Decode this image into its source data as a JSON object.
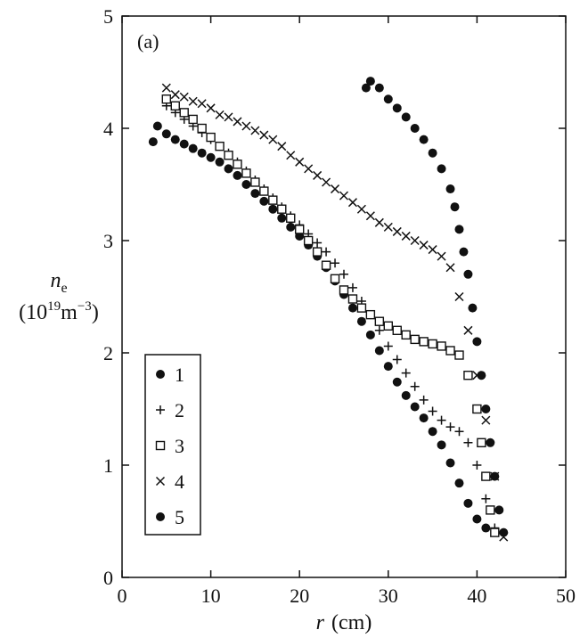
{
  "chart_data": {
    "type": "scatter",
    "panel_label": "(a)",
    "xlabel_var": "r",
    "xlabel_unit": "(cm)",
    "ylabel_var": "n",
    "ylabel_sub": "e",
    "ylabel_unit_base": "(10",
    "ylabel_unit_exp1": "19",
    "ylabel_unit_mid": "m",
    "ylabel_unit_exp2": "−3",
    "ylabel_unit_end": ")",
    "xlim": [
      0,
      50
    ],
    "ylim": [
      0,
      5
    ],
    "x_ticks": [
      0,
      10,
      20,
      30,
      40,
      50
    ],
    "y_ticks": [
      0,
      1,
      2,
      3,
      4,
      5
    ],
    "grid": false,
    "legend_position": "lower-left",
    "series": [
      {
        "name": "1",
        "marker": "filled-circle",
        "points": [
          [
            3.5,
            3.88
          ],
          [
            4,
            4.02
          ],
          [
            5,
            3.95
          ],
          [
            6,
            3.9
          ],
          [
            7,
            3.86
          ],
          [
            8,
            3.82
          ],
          [
            9,
            3.78
          ],
          [
            10,
            3.74
          ],
          [
            11,
            3.7
          ],
          [
            12,
            3.64
          ],
          [
            13,
            3.58
          ],
          [
            14,
            3.5
          ],
          [
            15,
            3.42
          ],
          [
            16,
            3.35
          ],
          [
            17,
            3.28
          ],
          [
            18,
            3.2
          ],
          [
            19,
            3.12
          ],
          [
            20,
            3.04
          ],
          [
            21,
            2.96
          ],
          [
            22,
            2.86
          ],
          [
            23,
            2.76
          ],
          [
            24,
            2.64
          ],
          [
            25,
            2.52
          ],
          [
            26,
            2.4
          ],
          [
            27,
            2.28
          ],
          [
            28,
            2.16
          ],
          [
            29,
            2.02
          ],
          [
            30,
            1.88
          ],
          [
            31,
            1.74
          ],
          [
            32,
            1.62
          ],
          [
            33,
            1.52
          ],
          [
            34,
            1.42
          ],
          [
            35,
            1.3
          ],
          [
            36,
            1.18
          ],
          [
            37,
            1.02
          ],
          [
            38,
            0.84
          ],
          [
            39,
            0.66
          ],
          [
            40,
            0.52
          ],
          [
            41,
            0.44
          ]
        ]
      },
      {
        "name": "2",
        "marker": "plus",
        "points": [
          [
            5,
            4.2
          ],
          [
            6,
            4.14
          ],
          [
            7,
            4.08
          ],
          [
            8,
            4.02
          ],
          [
            9,
            3.96
          ],
          [
            10,
            3.9
          ],
          [
            11,
            3.84
          ],
          [
            12,
            3.78
          ],
          [
            13,
            3.7
          ],
          [
            14,
            3.62
          ],
          [
            15,
            3.54
          ],
          [
            16,
            3.46
          ],
          [
            17,
            3.38
          ],
          [
            18,
            3.3
          ],
          [
            19,
            3.22
          ],
          [
            20,
            3.14
          ],
          [
            21,
            3.06
          ],
          [
            22,
            2.98
          ],
          [
            23,
            2.9
          ],
          [
            24,
            2.8
          ],
          [
            25,
            2.7
          ],
          [
            26,
            2.58
          ],
          [
            27,
            2.46
          ],
          [
            28,
            2.34
          ],
          [
            29,
            2.2
          ],
          [
            30,
            2.06
          ],
          [
            31,
            1.94
          ],
          [
            32,
            1.82
          ],
          [
            33,
            1.7
          ],
          [
            34,
            1.58
          ],
          [
            35,
            1.48
          ],
          [
            36,
            1.4
          ],
          [
            37,
            1.34
          ],
          [
            38,
            1.3
          ],
          [
            39,
            1.2
          ],
          [
            40,
            1.0
          ],
          [
            41,
            0.7
          ],
          [
            42,
            0.44
          ]
        ]
      },
      {
        "name": "3",
        "marker": "open-square",
        "points": [
          [
            5,
            4.26
          ],
          [
            6,
            4.2
          ],
          [
            7,
            4.14
          ],
          [
            8,
            4.08
          ],
          [
            9,
            4.0
          ],
          [
            10,
            3.92
          ],
          [
            11,
            3.84
          ],
          [
            12,
            3.76
          ],
          [
            13,
            3.68
          ],
          [
            14,
            3.6
          ],
          [
            15,
            3.52
          ],
          [
            16,
            3.44
          ],
          [
            17,
            3.36
          ],
          [
            18,
            3.28
          ],
          [
            19,
            3.2
          ],
          [
            20,
            3.1
          ],
          [
            21,
            3.0
          ],
          [
            22,
            2.9
          ],
          [
            23,
            2.78
          ],
          [
            24,
            2.66
          ],
          [
            25,
            2.56
          ],
          [
            26,
            2.48
          ],
          [
            27,
            2.4
          ],
          [
            28,
            2.34
          ],
          [
            29,
            2.28
          ],
          [
            30,
            2.24
          ],
          [
            31,
            2.2
          ],
          [
            32,
            2.16
          ],
          [
            33,
            2.12
          ],
          [
            34,
            2.1
          ],
          [
            35,
            2.08
          ],
          [
            36,
            2.06
          ],
          [
            37,
            2.02
          ],
          [
            38,
            1.98
          ],
          [
            39,
            1.8
          ],
          [
            40,
            1.5
          ],
          [
            40.5,
            1.2
          ],
          [
            41,
            0.9
          ],
          [
            41.5,
            0.6
          ],
          [
            42,
            0.4
          ]
        ]
      },
      {
        "name": "4",
        "marker": "cross",
        "points": [
          [
            5,
            4.36
          ],
          [
            6,
            4.3
          ],
          [
            7,
            4.28
          ],
          [
            8,
            4.24
          ],
          [
            9,
            4.22
          ],
          [
            10,
            4.18
          ],
          [
            11,
            4.12
          ],
          [
            12,
            4.1
          ],
          [
            13,
            4.06
          ],
          [
            14,
            4.02
          ],
          [
            15,
            3.98
          ],
          [
            16,
            3.94
          ],
          [
            17,
            3.9
          ],
          [
            18,
            3.84
          ],
          [
            19,
            3.76
          ],
          [
            20,
            3.7
          ],
          [
            21,
            3.64
          ],
          [
            22,
            3.58
          ],
          [
            23,
            3.52
          ],
          [
            24,
            3.46
          ],
          [
            25,
            3.4
          ],
          [
            26,
            3.34
          ],
          [
            27,
            3.28
          ],
          [
            28,
            3.22
          ],
          [
            29,
            3.16
          ],
          [
            30,
            3.12
          ],
          [
            31,
            3.08
          ],
          [
            32,
            3.04
          ],
          [
            33,
            3.0
          ],
          [
            34,
            2.96
          ],
          [
            35,
            2.92
          ],
          [
            36,
            2.86
          ],
          [
            37,
            2.76
          ],
          [
            38,
            2.5
          ],
          [
            39,
            2.2
          ],
          [
            40,
            1.8
          ],
          [
            41,
            1.4
          ],
          [
            42,
            0.9
          ],
          [
            43,
            0.36
          ]
        ]
      },
      {
        "name": "5",
        "marker": "filled-circle",
        "points": [
          [
            27.5,
            4.36
          ],
          [
            28,
            4.42
          ],
          [
            29,
            4.36
          ],
          [
            30,
            4.26
          ],
          [
            31,
            4.18
          ],
          [
            32,
            4.1
          ],
          [
            33,
            4.0
          ],
          [
            34,
            3.9
          ],
          [
            35,
            3.78
          ],
          [
            36,
            3.64
          ],
          [
            37,
            3.46
          ],
          [
            37.5,
            3.3
          ],
          [
            38,
            3.1
          ],
          [
            38.5,
            2.9
          ],
          [
            39,
            2.7
          ],
          [
            39.5,
            2.4
          ],
          [
            40,
            2.1
          ],
          [
            40.5,
            1.8
          ],
          [
            41,
            1.5
          ],
          [
            41.5,
            1.2
          ],
          [
            42,
            0.9
          ],
          [
            42.5,
            0.6
          ],
          [
            43,
            0.4
          ]
        ]
      }
    ],
    "legend_entries": [
      "1",
      "2",
      "3",
      "4",
      "5"
    ]
  }
}
